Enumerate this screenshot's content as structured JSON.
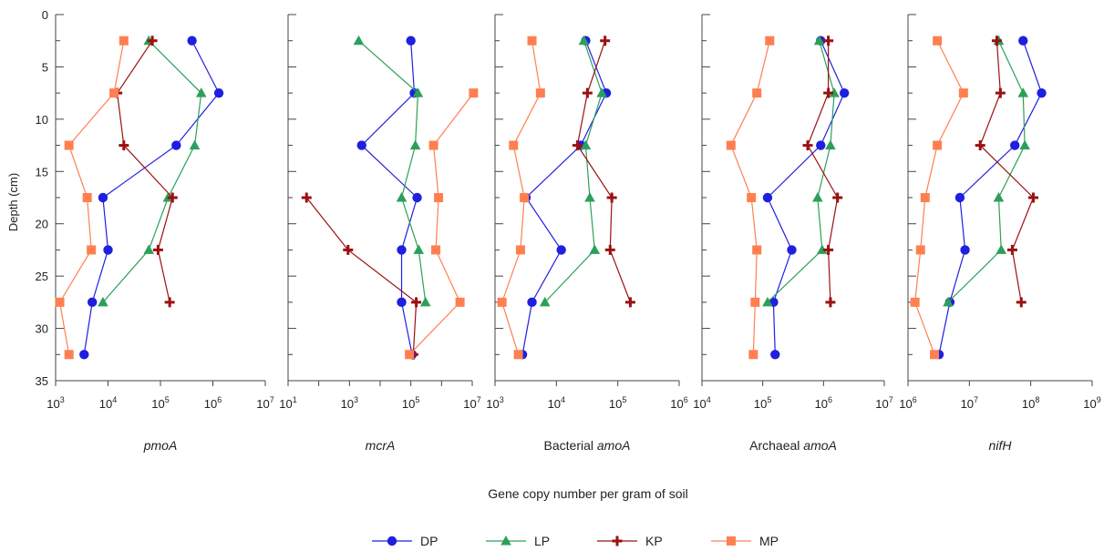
{
  "chart_data": {
    "type": "line",
    "ylabel": "Depth (cm)",
    "xlabel": "Gene copy number per gram of soil",
    "ylim": [
      0,
      35
    ],
    "y_ticks": [
      "0",
      "5",
      "10",
      "15",
      "20",
      "25",
      "30",
      "35"
    ],
    "x_scale": "log",
    "grid": false,
    "legend_position": "bottom-center",
    "legend": [
      {
        "name": "DP",
        "color": "#1f1fe0",
        "marker": "circle"
      },
      {
        "name": "LP",
        "color": "#2ca05a",
        "marker": "triangle"
      },
      {
        "name": "KP",
        "color": "#9b1010",
        "marker": "plus"
      },
      {
        "name": "MP",
        "color": "#ff7f50",
        "marker": "square"
      }
    ],
    "panels": [
      {
        "title_plain": "",
        "title_italic": "pmoA",
        "xlim_exp": [
          3,
          7
        ],
        "tick_labels": [
          {
            "base": "10",
            "exp": "3"
          },
          {
            "base": "10",
            "exp": "4"
          },
          {
            "base": "10",
            "exp": "5"
          },
          {
            "base": "10",
            "exp": "6"
          },
          {
            "base": "10",
            "exp": "7"
          }
        ],
        "series": [
          {
            "name": "DP",
            "points": [
              [
                400000,
                2.5
              ],
              [
                1300000,
                7.5
              ],
              [
                200000,
                12.5
              ],
              [
                8000,
                17.5
              ],
              [
                10000,
                22.5
              ],
              [
                5000,
                27.5
              ],
              [
                3500,
                32.5
              ]
            ]
          },
          {
            "name": "LP",
            "points": [
              [
                60000,
                2.5
              ],
              [
                600000,
                7.5
              ],
              [
                450000,
                12.5
              ],
              [
                140000,
                17.5
              ],
              [
                60000,
                22.5
              ],
              [
                8000,
                27.5
              ]
            ]
          },
          {
            "name": "KP",
            "points": [
              [
                70000,
                2.5
              ],
              [
                15000,
                7.5
              ],
              [
                20000,
                12.5
              ],
              [
                170000,
                17.5
              ],
              [
                90000,
                22.5
              ],
              [
                150000,
                27.5
              ]
            ]
          },
          {
            "name": "MP",
            "points": [
              [
                20000,
                2.5
              ],
              [
                13000,
                7.5
              ],
              [
                1800,
                12.5
              ],
              [
                4000,
                17.5
              ],
              [
                4800,
                22.5
              ],
              [
                1200,
                27.5
              ],
              [
                1800,
                32.5
              ]
            ]
          }
        ]
      },
      {
        "title_plain": "",
        "title_italic": "mcrA",
        "xlim_exp": [
          1,
          7
        ],
        "tick_labels": [
          {
            "base": "10",
            "exp": "1"
          },
          {
            "base": "10",
            "exp": "3"
          },
          {
            "base": "10",
            "exp": "5"
          },
          {
            "base": "10",
            "exp": "7"
          }
        ],
        "series": [
          {
            "name": "DP",
            "points": [
              [
                100000,
                2.5
              ],
              [
                130000,
                7.5
              ],
              [
                2500,
                12.5
              ],
              [
                160000,
                17.5
              ],
              [
                50000,
                22.5
              ],
              [
                50000,
                27.5
              ],
              [
                110000,
                32.5
              ]
            ]
          },
          {
            "name": "LP",
            "points": [
              [
                2000,
                2.5
              ],
              [
                170000,
                7.5
              ],
              [
                140000,
                12.5
              ],
              [
                50000,
                17.5
              ],
              [
                180000,
                22.5
              ],
              [
                300000,
                27.5
              ]
            ]
          },
          {
            "name": "KP",
            "points": [
              [
                40,
                17.5
              ],
              [
                900,
                22.5
              ],
              [
                150000,
                27.5
              ],
              [
                120000,
                32.5
              ]
            ]
          },
          {
            "name": "MP",
            "points": [
              [
                11000000,
                7.5
              ],
              [
                550000,
                12.5
              ],
              [
                800000,
                17.5
              ],
              [
                650000,
                22.5
              ],
              [
                4000000,
                27.5
              ],
              [
                90000,
                32.5
              ]
            ]
          }
        ]
      },
      {
        "title_plain": "Bacterial ",
        "title_italic": "amoA",
        "xlim_exp": [
          3,
          6
        ],
        "tick_labels": [
          {
            "base": "10",
            "exp": "3"
          },
          {
            "base": "10",
            "exp": "4"
          },
          {
            "base": "10",
            "exp": "5"
          },
          {
            "base": "10",
            "exp": "6"
          }
        ],
        "series": [
          {
            "name": "DP",
            "points": [
              [
                30000,
                2.5
              ],
              [
                65000,
                7.5
              ],
              [
                25000,
                12.5
              ],
              [
                3200,
                17.5
              ],
              [
                12000,
                22.5
              ],
              [
                4000,
                27.5
              ],
              [
                2800,
                32.5
              ]
            ]
          },
          {
            "name": "LP",
            "points": [
              [
                28000,
                2.5
              ],
              [
                55000,
                7.5
              ],
              [
                30000,
                12.5
              ],
              [
                35000,
                17.5
              ],
              [
                42000,
                22.5
              ],
              [
                6500,
                27.5
              ]
            ]
          },
          {
            "name": "KP",
            "points": [
              [
                62000,
                2.5
              ],
              [
                32000,
                7.5
              ],
              [
                22000,
                12.5
              ],
              [
                80000,
                17.5
              ],
              [
                75000,
                22.5
              ],
              [
                160000,
                27.5
              ]
            ]
          },
          {
            "name": "MP",
            "points": [
              [
                4000,
                2.5
              ],
              [
                5500,
                7.5
              ],
              [
                2000,
                12.5
              ],
              [
                3000,
                17.5
              ],
              [
                2600,
                22.5
              ],
              [
                1300,
                27.5
              ],
              [
                2400,
                32.5
              ]
            ]
          }
        ]
      },
      {
        "title_plain": "Archaeal ",
        "title_italic": "amoA",
        "xlim_exp": [
          4,
          7
        ],
        "tick_labels": [
          {
            "base": "10",
            "exp": "4"
          },
          {
            "base": "10",
            "exp": "5"
          },
          {
            "base": "10",
            "exp": "6"
          },
          {
            "base": "10",
            "exp": "7"
          }
        ],
        "series": [
          {
            "name": "DP",
            "points": [
              [
                900000,
                2.5
              ],
              [
                2200000,
                7.5
              ],
              [
                900000,
                12.5
              ],
              [
                120000,
                17.5
              ],
              [
                300000,
                22.5
              ],
              [
                150000,
                27.5
              ],
              [
                160000,
                32.5
              ]
            ]
          },
          {
            "name": "LP",
            "points": [
              [
                850000,
                2.5
              ],
              [
                1500000,
                7.5
              ],
              [
                1300000,
                12.5
              ],
              [
                800000,
                17.5
              ],
              [
                950000,
                22.5
              ],
              [
                120000,
                27.5
              ]
            ]
          },
          {
            "name": "KP",
            "points": [
              [
                1200000,
                2.5
              ],
              [
                1200000,
                7.5
              ],
              [
                550000,
                12.5
              ],
              [
                1700000,
                17.5
              ],
              [
                1200000,
                22.5
              ],
              [
                1300000,
                27.5
              ]
            ]
          },
          {
            "name": "MP",
            "points": [
              [
                130000,
                2.5
              ],
              [
                80000,
                7.5
              ],
              [
                30000,
                12.5
              ],
              [
                65000,
                17.5
              ],
              [
                80000,
                22.5
              ],
              [
                75000,
                27.5
              ],
              [
                70000,
                32.5
              ]
            ]
          }
        ]
      },
      {
        "title_plain": "",
        "title_italic": "nifH",
        "xlim_exp": [
          6,
          9
        ],
        "tick_labels": [
          {
            "base": "10",
            "exp": "6"
          },
          {
            "base": "10",
            "exp": "7"
          },
          {
            "base": "10",
            "exp": "8"
          },
          {
            "base": "10",
            "exp": "9"
          }
        ],
        "series": [
          {
            "name": "DP",
            "points": [
              [
                75000000,
                2.5
              ],
              [
                150000000,
                7.5
              ],
              [
                55000000,
                12.5
              ],
              [
                7000000,
                17.5
              ],
              [
                8500000,
                22.5
              ],
              [
                4800000,
                27.5
              ],
              [
                3200000,
                32.5
              ]
            ]
          },
          {
            "name": "LP",
            "points": [
              [
                30000000,
                2.5
              ],
              [
                75000000,
                7.5
              ],
              [
                80000000,
                12.5
              ],
              [
                30000000,
                17.5
              ],
              [
                33000000,
                22.5
              ],
              [
                4500000,
                27.5
              ]
            ]
          },
          {
            "name": "KP",
            "points": [
              [
                28000000,
                2.5
              ],
              [
                32000000,
                7.5
              ],
              [
                15000000,
                12.5
              ],
              [
                110000000,
                17.5
              ],
              [
                50000000,
                22.5
              ],
              [
                70000000,
                27.5
              ]
            ]
          },
          {
            "name": "MP",
            "points": [
              [
                3000000,
                2.5
              ],
              [
                8000000,
                7.5
              ],
              [
                3000000,
                12.5
              ],
              [
                1900000,
                17.5
              ],
              [
                1600000,
                22.5
              ],
              [
                1300000,
                27.5
              ],
              [
                2700000,
                32.5
              ]
            ]
          }
        ]
      }
    ]
  }
}
